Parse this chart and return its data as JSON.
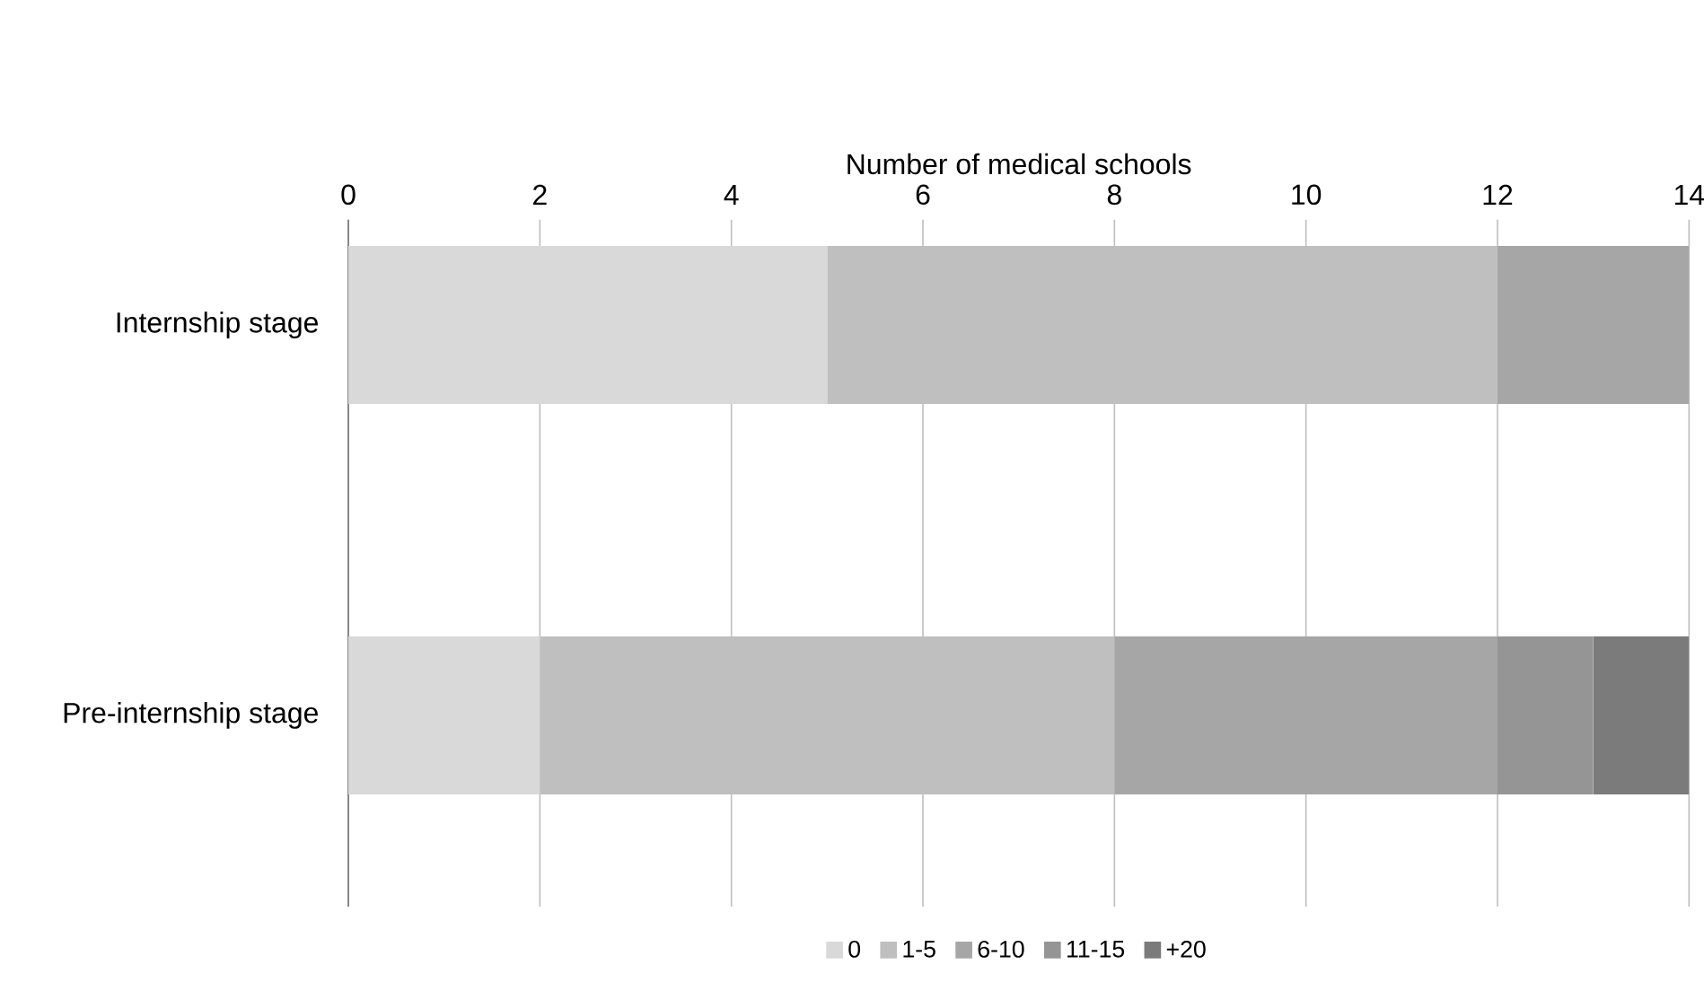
{
  "chart_data": {
    "type": "bar",
    "orientation": "horizontal",
    "stacked": true,
    "xlabel": "Number of medical schools",
    "categories": [
      "Internship stage",
      "Pre-internship stage"
    ],
    "series": [
      {
        "name": "0",
        "color": "#d9d9d9",
        "values": [
          5,
          2
        ]
      },
      {
        "name": "1-5",
        "color": "#bfbfbf",
        "values": [
          7,
          6
        ]
      },
      {
        "name": "6-10",
        "color": "#a6a6a6",
        "values": [
          2,
          4
        ]
      },
      {
        "name": "11-15",
        "color": "#959595",
        "values": [
          0,
          1
        ]
      },
      {
        "name": "+20",
        "color": "#7b7b7b",
        "values": [
          0,
          1
        ]
      }
    ],
    "xlim": [
      0,
      14
    ],
    "xticks": [
      0,
      2,
      4,
      6,
      8,
      10,
      12,
      14
    ],
    "grid": "x",
    "legend": "bottom"
  }
}
